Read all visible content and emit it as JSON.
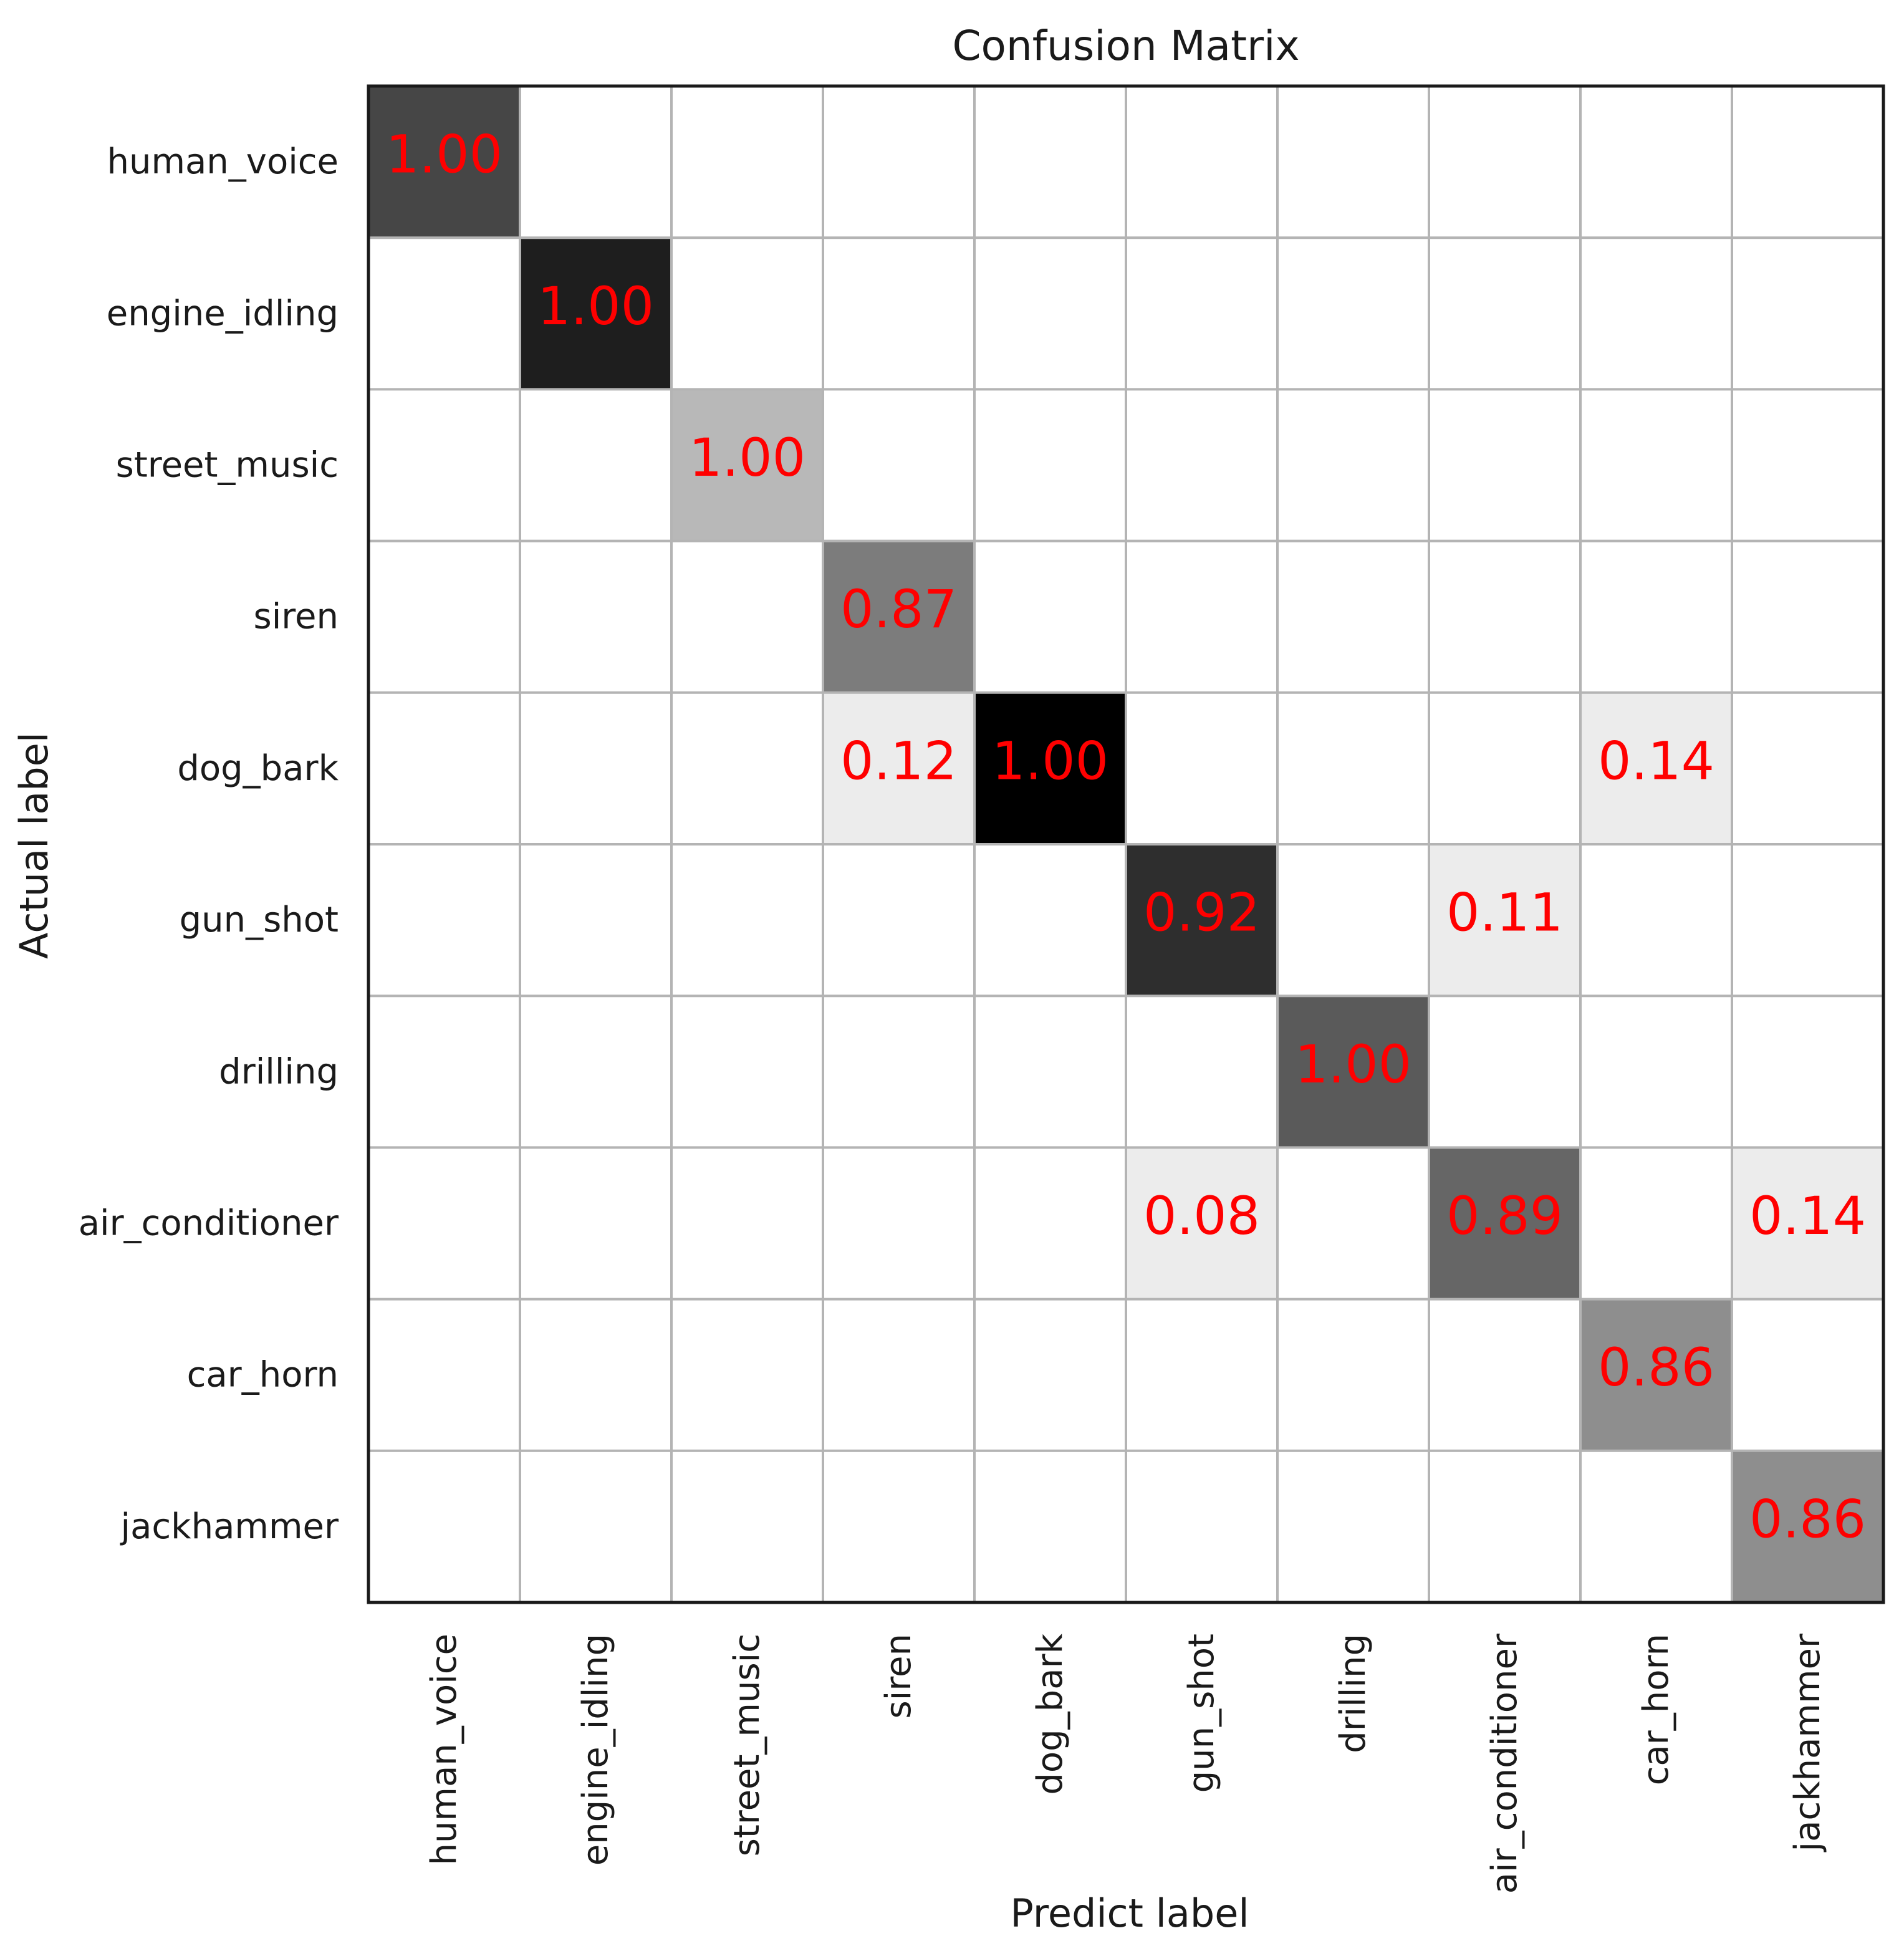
{
  "chart_data": {
    "type": "heatmap",
    "title": "Confusion Matrix",
    "xlabel": "Predict label",
    "ylabel": "Actual label",
    "x_categories": [
      "human_voice",
      "engine_idling",
      "street_music",
      "siren",
      "dog_bark",
      "gun_shot",
      "drilling",
      "air_conditioner",
      "car_horn",
      "jackhammer"
    ],
    "y_categories": [
      "human_voice",
      "engine_idling",
      "street_music",
      "siren",
      "dog_bark",
      "gun_shot",
      "drilling",
      "air_conditioner",
      "car_horn",
      "jackhammer"
    ],
    "cells": [
      {
        "row": 0,
        "col": 0,
        "value": 1.0,
        "label": "1.00",
        "shade": "#464646"
      },
      {
        "row": 1,
        "col": 1,
        "value": 1.0,
        "label": "1.00",
        "shade": "#1e1e1e"
      },
      {
        "row": 2,
        "col": 2,
        "value": 1.0,
        "label": "1.00",
        "shade": "#b8b8b8"
      },
      {
        "row": 3,
        "col": 3,
        "value": 0.87,
        "label": "0.87",
        "shade": "#7c7c7c"
      },
      {
        "row": 4,
        "col": 3,
        "value": 0.12,
        "label": "0.12",
        "shade": "#ececec"
      },
      {
        "row": 4,
        "col": 4,
        "value": 1.0,
        "label": "1.00",
        "shade": "#000000"
      },
      {
        "row": 4,
        "col": 8,
        "value": 0.14,
        "label": "0.14",
        "shade": "#ececec"
      },
      {
        "row": 5,
        "col": 5,
        "value": 0.92,
        "label": "0.92",
        "shade": "#2e2e2e"
      },
      {
        "row": 5,
        "col": 7,
        "value": 0.11,
        "label": "0.11",
        "shade": "#ececec"
      },
      {
        "row": 6,
        "col": 6,
        "value": 1.0,
        "label": "1.00",
        "shade": "#5a5a5a"
      },
      {
        "row": 7,
        "col": 5,
        "value": 0.08,
        "label": "0.08",
        "shade": "#ececec"
      },
      {
        "row": 7,
        "col": 7,
        "value": 0.89,
        "label": "0.89",
        "shade": "#666666"
      },
      {
        "row": 7,
        "col": 9,
        "value": 0.14,
        "label": "0.14",
        "shade": "#ececec"
      },
      {
        "row": 8,
        "col": 8,
        "value": 0.86,
        "label": "0.86",
        "shade": "#8e8e8e"
      },
      {
        "row": 9,
        "col": 9,
        "value": 0.86,
        "label": "0.86",
        "shade": "#8e8e8e"
      }
    ],
    "grid": true,
    "value_color": "#ff0000",
    "grid_color": "#b4b4b4",
    "frame_color": "#1a1a1a"
  }
}
